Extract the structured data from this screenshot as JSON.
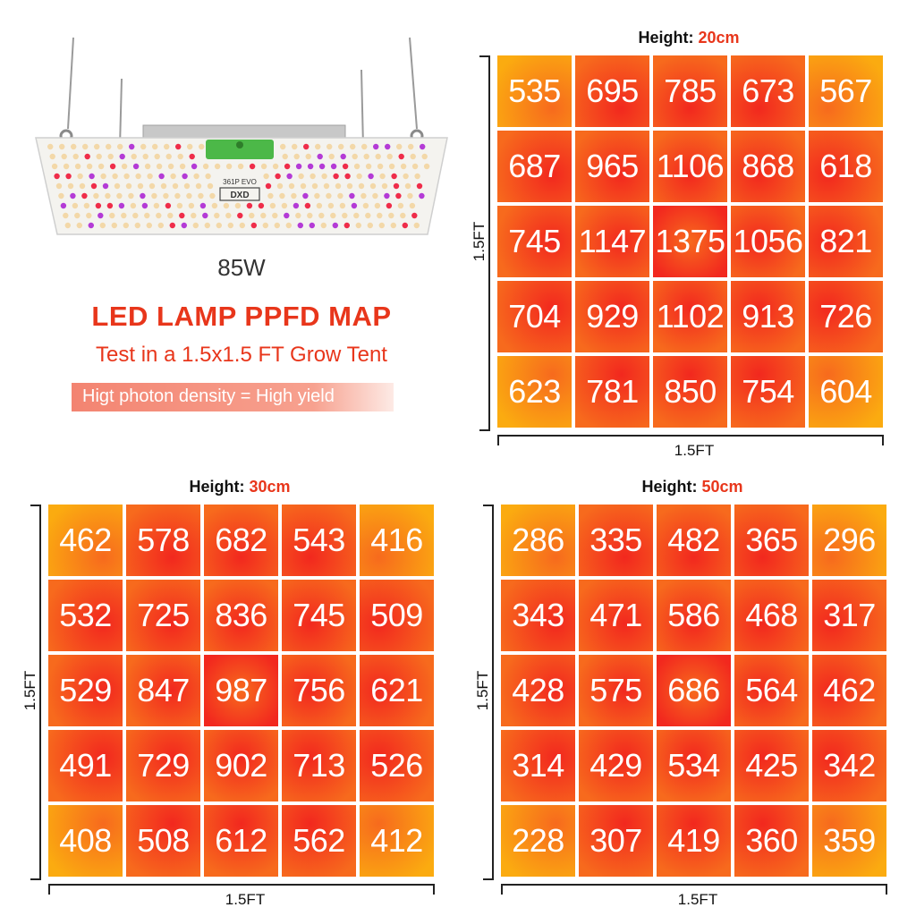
{
  "product": {
    "wattage": "85W",
    "board_text": "361P EVO",
    "logo_text": "DXD"
  },
  "headline": {
    "title": "LED LAMP PPFD MAP",
    "subtitle": "Test in a 1.5x1.5 FT Grow Tent",
    "banner": "Higt photon density = High yield"
  },
  "colors": {
    "accent": "#e8361b",
    "cell_hot": "#f2281e",
    "cell_warm": "#f76a1d",
    "cell_cool": "#fbab10"
  },
  "panels": [
    {
      "label": "Height:",
      "height": "20cm",
      "side_label": "1.5FT",
      "bottom_label": "1.5FT",
      "grid": [
        [
          "535",
          "695",
          "785",
          "673",
          "567"
        ],
        [
          "687",
          "965",
          "1106",
          "868",
          "618"
        ],
        [
          "745",
          "1147",
          "1375",
          "1056",
          "821"
        ],
        [
          "704",
          "929",
          "1102",
          "913",
          "726"
        ],
        [
          "623",
          "781",
          "850",
          "754",
          "604"
        ]
      ]
    },
    {
      "label": "Height:",
      "height": "30cm",
      "side_label": "1.5FT",
      "bottom_label": "1.5FT",
      "grid": [
        [
          "462",
          "578",
          "682",
          "543",
          "416"
        ],
        [
          "532",
          "725",
          "836",
          "745",
          "509"
        ],
        [
          "529",
          "847",
          "987",
          "756",
          "621"
        ],
        [
          "491",
          "729",
          "902",
          "713",
          "526"
        ],
        [
          "408",
          "508",
          "612",
          "562",
          "412"
        ]
      ]
    },
    {
      "label": "Height:",
      "height": "50cm",
      "side_label": "1.5FT",
      "bottom_label": "1.5FT",
      "grid": [
        [
          "286",
          "335",
          "482",
          "365",
          "296"
        ],
        [
          "343",
          "471",
          "586",
          "468",
          "317"
        ],
        [
          "428",
          "575",
          "686",
          "564",
          "462"
        ],
        [
          "314",
          "429",
          "534",
          "425",
          "342"
        ],
        [
          "228",
          "307",
          "419",
          "360",
          "359"
        ]
      ]
    }
  ]
}
